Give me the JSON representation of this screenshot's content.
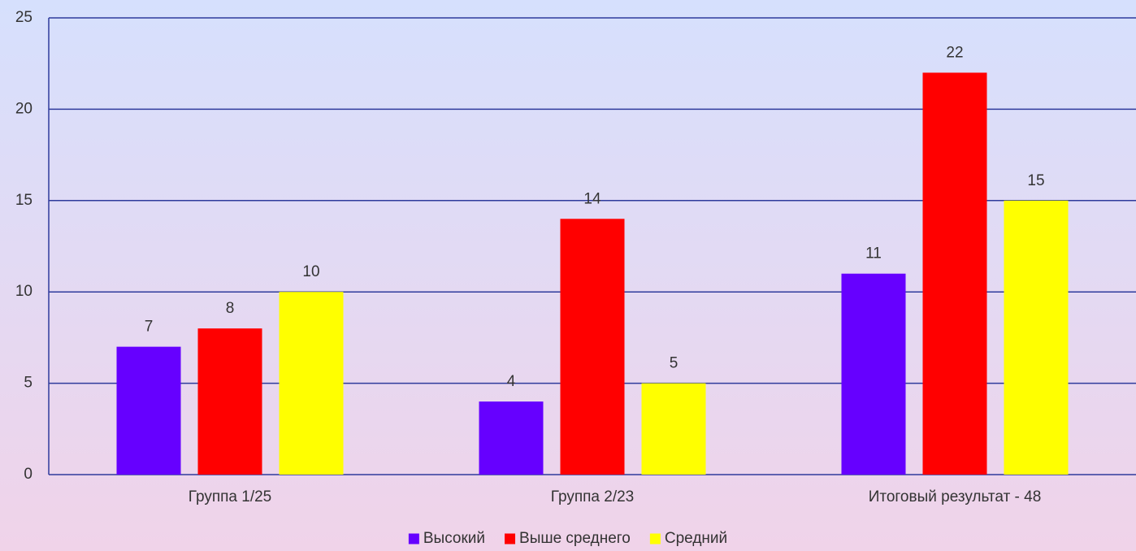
{
  "chart_data": {
    "type": "bar",
    "categories": [
      "Группа 1/25",
      "Группа 2/23",
      "Итоговый результат - 48"
    ],
    "series": [
      {
        "name": "Высокий",
        "color": "#6600ff",
        "values": [
          7,
          4,
          11
        ]
      },
      {
        "name": "Выше среднего",
        "color": "#ff0000",
        "values": [
          8,
          14,
          22
        ]
      },
      {
        "name": "Средний",
        "color": "#ffff00",
        "values": [
          10,
          5,
          15
        ]
      }
    ],
    "ylim": [
      0,
      25
    ],
    "yticks": [
      0,
      5,
      10,
      15,
      20,
      25
    ],
    "grid": true,
    "legend": "bottom"
  }
}
